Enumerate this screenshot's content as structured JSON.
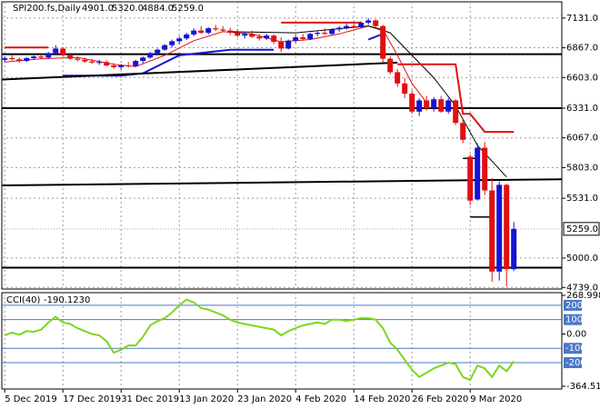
{
  "chart_data": [
    {
      "type": "candlestick",
      "title": "SPI200.fs,Daily",
      "title_values": [
        "4901.0",
        "5320.0",
        "4884.0",
        "5259.0"
      ],
      "open": [
        6760,
        6775,
        6765,
        6750,
        6775,
        6790,
        6780,
        6820,
        6860,
        6800,
        6770,
        6760,
        6745,
        6735,
        6740,
        6710,
        6695,
        6710,
        6705,
        6750,
        6780,
        6820,
        6850,
        6890,
        6925,
        6950,
        6985,
        7020,
        7000,
        7040,
        7030,
        7020,
        7000,
        6975,
        6990,
        6965,
        6950,
        6975,
        6920,
        6860,
        6930,
        6960,
        6945,
        6990,
        7000,
        6990,
        7030,
        7045,
        7060,
        7050,
        7090,
        7110,
        7060,
        6770,
        6650,
        6550,
        6460,
        6300,
        6400,
        6330,
        6410,
        6300,
        6400,
        6200,
        5900,
        5520,
        5980,
        5600,
        4880,
        5650,
        4901
      ],
      "high": [
        6790,
        6800,
        6780,
        6785,
        6800,
        6810,
        6830,
        6890,
        6870,
        6810,
        6790,
        6780,
        6770,
        6760,
        6755,
        6730,
        6720,
        6740,
        6760,
        6790,
        6830,
        6860,
        6900,
        6940,
        6970,
        7000,
        7040,
        7060,
        7050,
        7070,
        7060,
        7045,
        7030,
        7010,
        7020,
        6990,
        6990,
        6985,
        6960,
        6940,
        6980,
        6990,
        7000,
        7020,
        7040,
        7040,
        7060,
        7080,
        7090,
        7100,
        7131,
        7120,
        7070,
        6790,
        6680,
        6600,
        6490,
        6420,
        6440,
        6430,
        6440,
        6420,
        6410,
        6240,
        5920,
        6020,
        6030,
        5710,
        5680,
        5660,
        5320
      ],
      "low": [
        6740,
        6755,
        6735,
        6740,
        6760,
        6770,
        6770,
        6810,
        6790,
        6760,
        6745,
        6735,
        6725,
        6715,
        6700,
        6680,
        6670,
        6690,
        6695,
        6730,
        6770,
        6800,
        6840,
        6870,
        6900,
        6935,
        6970,
        6990,
        6985,
        7015,
        7005,
        6980,
        6960,
        6950,
        6955,
        6930,
        6935,
        6900,
        6830,
        6850,
        6910,
        6930,
        6935,
        6970,
        6980,
        6980,
        7010,
        7030,
        7040,
        7040,
        7070,
        7040,
        6740,
        6630,
        6520,
        6420,
        6280,
        6260,
        6310,
        6300,
        6290,
        6280,
        6180,
        6020,
        5470,
        5510,
        5560,
        4790,
        4800,
        4750,
        4884
      ],
      "close": [
        6775,
        6765,
        6750,
        6775,
        6790,
        6780,
        6820,
        6860,
        6800,
        6770,
        6760,
        6745,
        6735,
        6740,
        6710,
        6695,
        6710,
        6705,
        6750,
        6780,
        6820,
        6850,
        6890,
        6925,
        6950,
        6985,
        7020,
        7000,
        7040,
        7030,
        7020,
        7000,
        6975,
        6990,
        6965,
        6950,
        6975,
        6920,
        6860,
        6930,
        6960,
        6945,
        6990,
        7000,
        6990,
        7030,
        7045,
        7060,
        7050,
        7090,
        7110,
        7060,
        6770,
        6650,
        6550,
        6460,
        6300,
        6400,
        6330,
        6410,
        6300,
        6400,
        6200,
        6050,
        5510,
        5980,
        5600,
        4880,
        5650,
        4901,
        5259
      ],
      "up_color": "#1414d2",
      "down_color": "#e01010",
      "xlim": [
        -0.4,
        76.6
      ],
      "xticks": [
        {
          "value": 0,
          "label": "5 Dec 2019"
        },
        {
          "value": 8,
          "label": "17 Dec 2019"
        },
        {
          "value": 16,
          "label": "31 Dec 2019"
        },
        {
          "value": 24,
          "label": "13 Jan 2020"
        },
        {
          "value": 32,
          "label": "23 Jan 2020"
        },
        {
          "value": 40,
          "label": "4 Feb 2020"
        },
        {
          "value": 48,
          "label": "14 Feb 2020"
        },
        {
          "value": 56,
          "label": "26 Feb 2020"
        },
        {
          "value": 64,
          "label": "9 Mar 2020"
        }
      ],
      "ylim": [
        4725,
        7275
      ],
      "yticks": [
        {
          "value": 7131,
          "label": "7131.0"
        },
        {
          "value": 6867,
          "label": "6867.0"
        },
        {
          "value": 6603,
          "label": "6603.0"
        },
        {
          "value": 6331,
          "label": "6331.0"
        },
        {
          "value": 6067,
          "label": "6067.0"
        },
        {
          "value": 5803,
          "label": "5803.0"
        },
        {
          "value": 5531,
          "label": "5531.0"
        },
        {
          "value": 5000,
          "label": "5000.0"
        },
        {
          "value": 4739,
          "label": "4739.0"
        }
      ],
      "current_price": {
        "value": 5259,
        "label": "5259.0"
      },
      "grid": true,
      "lines": [
        {
          "color": "#e01010",
          "width": 1,
          "x": [
            0,
            5,
            10,
            15,
            18,
            22,
            26,
            30,
            34,
            38,
            42,
            46,
            50,
            52,
            54,
            56,
            58
          ],
          "values": [
            6740,
            6770,
            6780,
            6720,
            6700,
            6800,
            6930,
            7010,
            6990,
            6920,
            6940,
            6990,
            7060,
            7030,
            6800,
            6550,
            6380
          ]
        },
        {
          "color": "#000000",
          "width": 1,
          "x": [
            31,
            40,
            50,
            53,
            56,
            59,
            62,
            65,
            69
          ],
          "values": [
            7010,
            7000,
            7060,
            7000,
            6800,
            6600,
            6350,
            6000,
            5720
          ]
        },
        {
          "color": "#1414d2",
          "width": 2,
          "x": [
            8,
            16,
            19,
            24,
            31,
            37
          ],
          "values": [
            6620,
            6620,
            6640,
            6800,
            6850,
            6850
          ]
        },
        {
          "color": "#1414d2",
          "width": 2,
          "x": [
            50,
            52
          ],
          "values": [
            6940,
            6990
          ]
        },
        {
          "color": "#e01010",
          "width": 2,
          "x": [
            0,
            6,
            6.5,
            38,
            49,
            49.5,
            54,
            62,
            63,
            64,
            66,
            70
          ],
          "values": [
            6870,
            6870,
            null,
            7090,
            7090,
            null,
            6720,
            6720,
            6280,
            6280,
            6120,
            6120
          ]
        },
        {
          "color": "#000000",
          "width": 1.5,
          "x": [
            63,
            65,
            65.5,
            64,
            67
          ],
          "values": [
            5885,
            5885,
            null,
            5365,
            5365
          ]
        },
        {
          "color": "#000000",
          "width": 2,
          "x": [
            -0.4,
            54
          ],
          "values": [
            6585,
            6735
          ]
        },
        {
          "color": "#000000",
          "width": 2,
          "x": [
            -0.4,
            76.6
          ],
          "values": [
            5645,
            5700
          ]
        }
      ],
      "hlines": [
        6810,
        6331,
        4915
      ]
    },
    {
      "type": "line",
      "title": "CCI(40)",
      "value_label": "-190.1230",
      "color": "#7cd61e",
      "values": [
        -10,
        10,
        -5,
        20,
        15,
        30,
        80,
        120,
        80,
        70,
        40,
        20,
        0,
        -10,
        -50,
        -130,
        -110,
        -80,
        -80,
        -20,
        60,
        90,
        110,
        150,
        200,
        240,
        220,
        180,
        170,
        150,
        130,
        100,
        80,
        70,
        60,
        50,
        40,
        30,
        -10,
        20,
        40,
        60,
        70,
        80,
        70,
        100,
        100,
        90,
        100,
        110,
        110,
        100,
        40,
        -60,
        -110,
        -180,
        -250,
        -300,
        -270,
        -240,
        -220,
        -200,
        -210,
        -300,
        -320,
        -220,
        -240,
        -300,
        -220,
        -260,
        -190.123
      ],
      "ylim": [
        -364.517,
        268.9988
      ],
      "yticks": [
        268.9988,
        {
          "value": 0,
          "label": "0.00"
        },
        -364.517
      ],
      "levels": [
        200,
        100,
        -100,
        -200
      ],
      "level_color": "#4a78c8"
    }
  ]
}
